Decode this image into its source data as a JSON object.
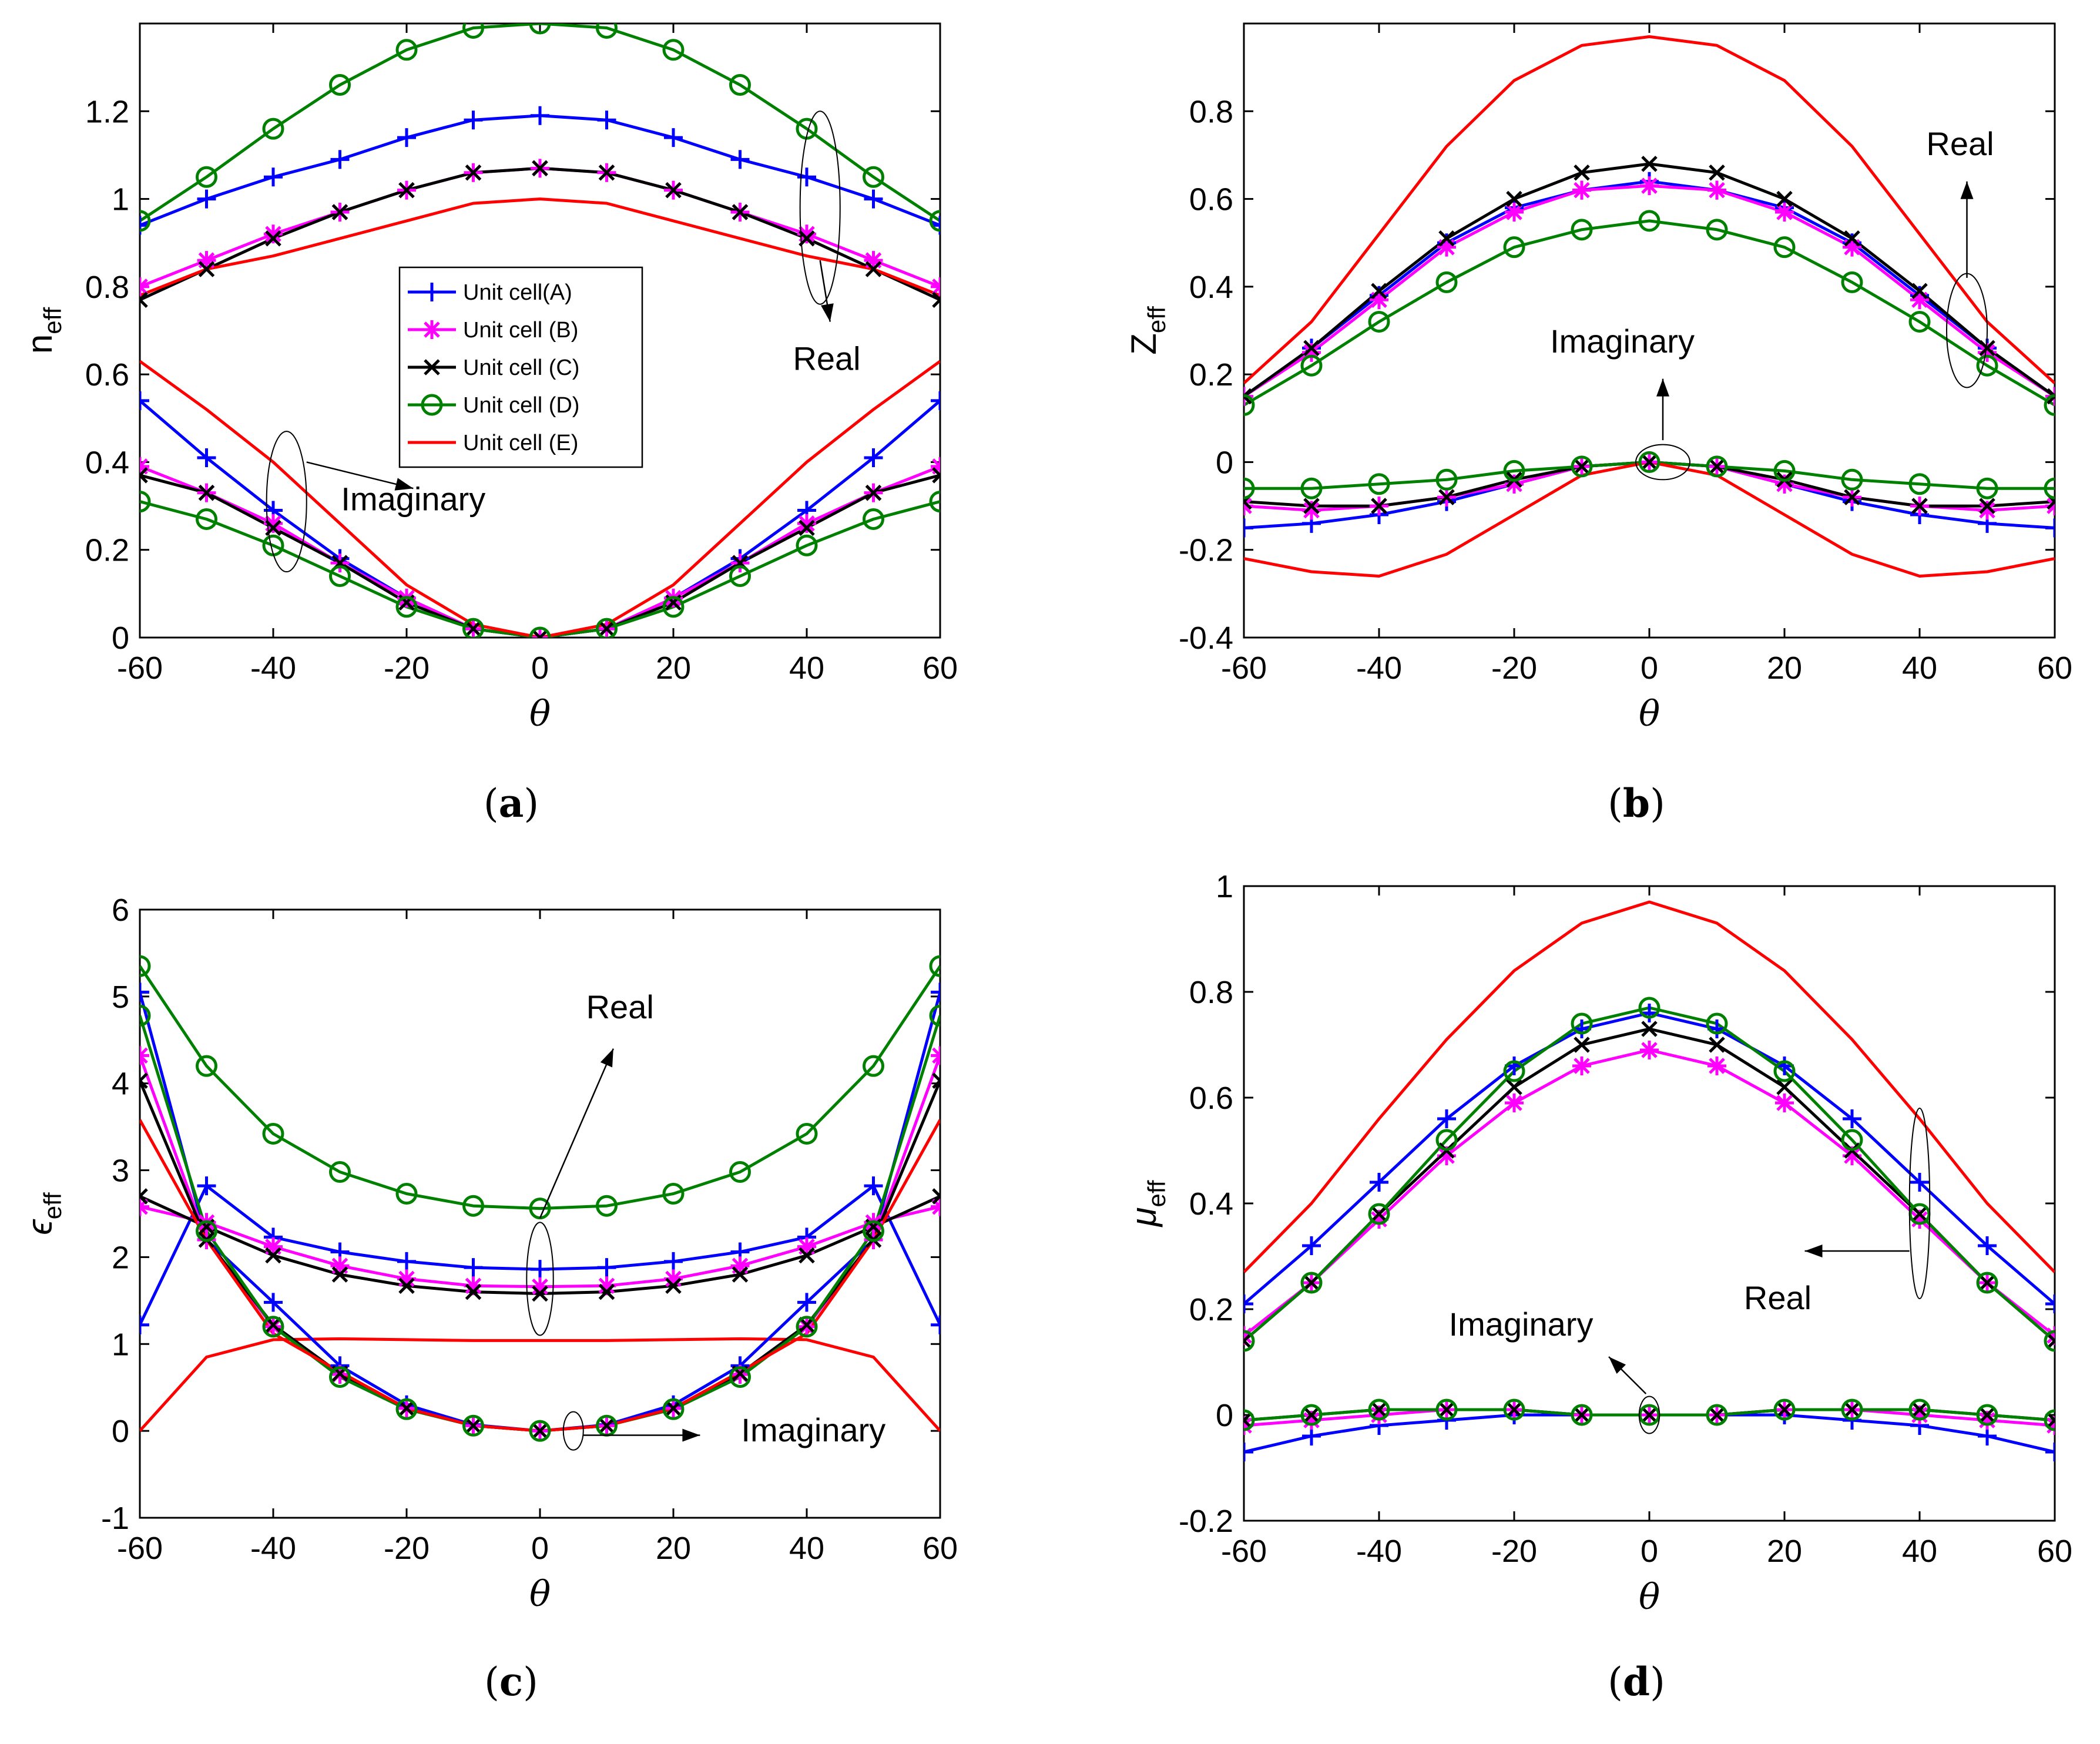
{
  "colors": {
    "A": "#0000ff",
    "B": "#ff00ff",
    "C": "#000000",
    "D": "#008000",
    "E": "#ff0000"
  },
  "chart_data": [
    {
      "id": "a",
      "type": "line",
      "panel_label": "a",
      "ylabel": "n",
      "ylabel_sub": "eff",
      "xlabel": "θ",
      "xlim": [
        -60,
        60
      ],
      "ylim": [
        0,
        1.4
      ],
      "xticks": [
        -60,
        -40,
        -20,
        0,
        20,
        40,
        60
      ],
      "xtick_labels": [
        "-60",
        "-40",
        "-20",
        "0",
        "20",
        "40",
        "60"
      ],
      "yticks": [
        0,
        0.2,
        0.4,
        0.6,
        0.8,
        1,
        1.2
      ],
      "ytick_labels": [
        "0",
        "0.2",
        "0.4",
        "0.6",
        "0.8",
        "1",
        "1.2"
      ],
      "x": [
        -60,
        -50,
        -40,
        -30,
        -20,
        -10,
        0,
        10,
        20,
        30,
        40,
        50,
        60
      ],
      "legend": {
        "position": "center",
        "entries": [
          {
            "key": "A",
            "label": "Unit cell(A)"
          },
          {
            "key": "B",
            "label": "Unit cell (B)"
          },
          {
            "key": "C",
            "label": "Unit cell (C)"
          },
          {
            "key": "D",
            "label": "Unit cell (D)"
          },
          {
            "key": "E",
            "label": "Unit cell (E)"
          }
        ]
      },
      "annotations": [
        {
          "text": "Real",
          "tx": 43,
          "ty": 0.61,
          "ex": 42,
          "ey": 0.98,
          "erx": 3,
          "ery": 0.22,
          "ax1": 42,
          "ay1": 0.86,
          "ax2": 43.5,
          "ay2": 0.72
        },
        {
          "text": "Imaginary",
          "tx": -19,
          "ty": 0.29,
          "ex": -38,
          "ey": 0.31,
          "erx": 3,
          "ery": 0.16,
          "ax1": -35,
          "ay1": 0.4,
          "ax2": -19,
          "ay2": 0.34
        }
      ],
      "series": [
        {
          "key": "A",
          "marker": "plus",
          "values": [
            0.94,
            1.0,
            1.05,
            1.09,
            1.14,
            1.18,
            1.19,
            1.18,
            1.14,
            1.09,
            1.05,
            1.0,
            0.94
          ]
        },
        {
          "key": "B",
          "marker": "star",
          "values": [
            0.8,
            0.86,
            0.92,
            0.97,
            1.02,
            1.06,
            1.07,
            1.06,
            1.02,
            0.97,
            0.92,
            0.86,
            0.8
          ]
        },
        {
          "key": "C",
          "marker": "x",
          "values": [
            0.77,
            0.84,
            0.91,
            0.97,
            1.02,
            1.06,
            1.07,
            1.06,
            1.02,
            0.97,
            0.91,
            0.84,
            0.77
          ]
        },
        {
          "key": "D",
          "marker": "circle",
          "values": [
            0.95,
            1.05,
            1.16,
            1.26,
            1.34,
            1.39,
            1.4,
            1.39,
            1.34,
            1.26,
            1.16,
            1.05,
            0.95
          ]
        },
        {
          "key": "E",
          "marker": "none",
          "values": [
            0.78,
            0.84,
            0.87,
            0.91,
            0.95,
            0.99,
            1.0,
            0.99,
            0.95,
            0.91,
            0.87,
            0.84,
            0.78
          ]
        },
        {
          "key": "A",
          "marker": "plus",
          "values": [
            0.54,
            0.41,
            0.29,
            0.18,
            0.09,
            0.02,
            0.0,
            0.02,
            0.09,
            0.18,
            0.29,
            0.41,
            0.54
          ]
        },
        {
          "key": "B",
          "marker": "star",
          "values": [
            0.39,
            0.33,
            0.26,
            0.17,
            0.09,
            0.02,
            0.0,
            0.02,
            0.09,
            0.17,
            0.26,
            0.33,
            0.39
          ]
        },
        {
          "key": "C",
          "marker": "x",
          "values": [
            0.37,
            0.33,
            0.25,
            0.17,
            0.08,
            0.02,
            0.0,
            0.02,
            0.08,
            0.17,
            0.25,
            0.33,
            0.37
          ]
        },
        {
          "key": "D",
          "marker": "circle",
          "values": [
            0.31,
            0.27,
            0.21,
            0.14,
            0.07,
            0.02,
            0.0,
            0.02,
            0.07,
            0.14,
            0.21,
            0.27,
            0.31
          ]
        },
        {
          "key": "E",
          "marker": "none",
          "values": [
            0.63,
            0.52,
            0.4,
            0.26,
            0.12,
            0.03,
            0.0,
            0.03,
            0.12,
            0.26,
            0.4,
            0.52,
            0.63
          ]
        }
      ]
    },
    {
      "id": "b",
      "type": "line",
      "panel_label": "b",
      "ylabel": "Z",
      "ylabel_sub": "eff",
      "xlabel": "θ",
      "xlim": [
        -60,
        60
      ],
      "ylim": [
        -0.4,
        1.0
      ],
      "xticks": [
        -60,
        -40,
        -20,
        0,
        20,
        40,
        60
      ],
      "xtick_labels": [
        "-60",
        "-40",
        "-20",
        "0",
        "20",
        "40",
        "60"
      ],
      "yticks": [
        -0.4,
        -0.2,
        0,
        0.2,
        0.4,
        0.6,
        0.8
      ],
      "ytick_labels": [
        "-0.4",
        "-0.2",
        "0",
        "0.2",
        "0.4",
        "0.6",
        "0.8"
      ],
      "x": [
        -60,
        -50,
        -40,
        -30,
        -20,
        -10,
        0,
        10,
        20,
        30,
        40,
        50,
        60
      ],
      "annotations": [
        {
          "text": "Real",
          "tx": 46,
          "ty": 0.7,
          "ex": 47,
          "ey": 0.3,
          "erx": 3,
          "ery": 0.13,
          "ax1": 47,
          "ay1": 0.42,
          "ax2": 47,
          "ay2": 0.64
        },
        {
          "text": "Imaginary",
          "tx": -4,
          "ty": 0.25,
          "ex": 2,
          "ey": 0.0,
          "erx": 4,
          "ery": 0.04,
          "ax1": 2,
          "ay1": 0.05,
          "ax2": 2,
          "ay2": 0.19
        }
      ],
      "series": [
        {
          "key": "A",
          "marker": "plus",
          "values": [
            0.15,
            0.26,
            0.38,
            0.5,
            0.58,
            0.62,
            0.64,
            0.62,
            0.58,
            0.5,
            0.38,
            0.26,
            0.15
          ]
        },
        {
          "key": "B",
          "marker": "star",
          "values": [
            0.15,
            0.25,
            0.37,
            0.49,
            0.57,
            0.62,
            0.63,
            0.62,
            0.57,
            0.49,
            0.37,
            0.25,
            0.15
          ]
        },
        {
          "key": "C",
          "marker": "x",
          "values": [
            0.15,
            0.26,
            0.39,
            0.51,
            0.6,
            0.66,
            0.68,
            0.66,
            0.6,
            0.51,
            0.39,
            0.26,
            0.15
          ]
        },
        {
          "key": "D",
          "marker": "circle",
          "values": [
            0.13,
            0.22,
            0.32,
            0.41,
            0.49,
            0.53,
            0.55,
            0.53,
            0.49,
            0.41,
            0.32,
            0.22,
            0.13
          ]
        },
        {
          "key": "E",
          "marker": "none",
          "values": [
            0.18,
            0.32,
            0.52,
            0.72,
            0.87,
            0.95,
            0.97,
            0.95,
            0.87,
            0.72,
            0.52,
            0.32,
            0.18
          ]
        },
        {
          "key": "A",
          "marker": "plus",
          "values": [
            -0.15,
            -0.14,
            -0.12,
            -0.09,
            -0.05,
            -0.01,
            0.0,
            -0.01,
            -0.05,
            -0.09,
            -0.12,
            -0.14,
            -0.15
          ]
        },
        {
          "key": "B",
          "marker": "star",
          "values": [
            -0.1,
            -0.11,
            -0.1,
            -0.08,
            -0.05,
            -0.01,
            0.0,
            -0.01,
            -0.05,
            -0.08,
            -0.1,
            -0.11,
            -0.1
          ]
        },
        {
          "key": "C",
          "marker": "x",
          "values": [
            -0.09,
            -0.1,
            -0.1,
            -0.08,
            -0.04,
            -0.01,
            0.0,
            -0.01,
            -0.04,
            -0.08,
            -0.1,
            -0.1,
            -0.09
          ]
        },
        {
          "key": "D",
          "marker": "circle",
          "values": [
            -0.06,
            -0.06,
            -0.05,
            -0.04,
            -0.02,
            -0.01,
            0.0,
            -0.01,
            -0.02,
            -0.04,
            -0.05,
            -0.06,
            -0.06
          ]
        },
        {
          "key": "E",
          "marker": "none",
          "values": [
            -0.22,
            -0.25,
            -0.26,
            -0.21,
            -0.12,
            -0.03,
            0.0,
            -0.03,
            -0.12,
            -0.21,
            -0.26,
            -0.25,
            -0.22
          ]
        }
      ]
    },
    {
      "id": "c",
      "type": "line",
      "panel_label": "c",
      "ylabel": "ϵ",
      "ylabel_sub": "eff",
      "xlabel": "θ",
      "xlim": [
        -60,
        60
      ],
      "ylim": [
        -1,
        6
      ],
      "xticks": [
        -60,
        -40,
        -20,
        0,
        20,
        40,
        60
      ],
      "xtick_labels": [
        "-60",
        "-40",
        "-20",
        "0",
        "20",
        "40",
        "60"
      ],
      "yticks": [
        -1,
        0,
        1,
        2,
        3,
        4,
        5,
        6
      ],
      "ytick_labels": [
        "-1",
        "0",
        "1",
        "2",
        "3",
        "4",
        "5",
        "6"
      ],
      "x": [
        -60,
        -50,
        -40,
        -30,
        -20,
        -10,
        0,
        10,
        20,
        30,
        40,
        50,
        60
      ],
      "annotations": [
        {
          "text": "Real",
          "tx": 12,
          "ty": 4.75,
          "ex": 0,
          "ey": 1.75,
          "erx": 2,
          "ery": 0.65,
          "ax1": 0,
          "ay1": 2.45,
          "ax2": 11,
          "ay2": 4.4
        },
        {
          "text": "Imaginary",
          "tx": 41,
          "ty": -0.12,
          "ex": 5,
          "ey": 0.0,
          "erx": 1.5,
          "ery": 0.22,
          "ax1": 6.5,
          "ay1": -0.05,
          "ax2": 24,
          "ay2": -0.05
        }
      ],
      "series": [
        {
          "key": "A",
          "marker": "plus",
          "values": [
            1.22,
            2.82,
            2.23,
            2.06,
            1.95,
            1.88,
            1.86,
            1.88,
            1.95,
            2.06,
            2.23,
            2.82,
            1.22
          ]
        },
        {
          "key": "B",
          "marker": "star",
          "values": [
            2.58,
            2.4,
            2.12,
            1.9,
            1.75,
            1.67,
            1.66,
            1.67,
            1.75,
            1.9,
            2.12,
            2.4,
            2.58
          ]
        },
        {
          "key": "C",
          "marker": "x",
          "values": [
            2.7,
            2.35,
            2.02,
            1.8,
            1.67,
            1.6,
            1.58,
            1.6,
            1.67,
            1.8,
            2.02,
            2.35,
            2.7
          ]
        },
        {
          "key": "D",
          "marker": "circle",
          "values": [
            5.35,
            4.2,
            3.42,
            2.98,
            2.73,
            2.59,
            2.56,
            2.59,
            2.73,
            2.98,
            3.42,
            4.2,
            5.35
          ]
        },
        {
          "key": "E",
          "marker": "none",
          "values": [
            0.0,
            0.85,
            1.05,
            1.06,
            1.05,
            1.04,
            1.04,
            1.04,
            1.05,
            1.06,
            1.05,
            0.85,
            0.0
          ]
        },
        {
          "key": "A",
          "marker": "plus",
          "values": [
            5.05,
            2.2,
            1.48,
            0.75,
            0.3,
            0.07,
            0.0,
            0.07,
            0.3,
            0.75,
            1.48,
            2.2,
            5.05
          ]
        },
        {
          "key": "B",
          "marker": "star",
          "values": [
            4.32,
            2.2,
            1.2,
            0.65,
            0.26,
            0.06,
            0.0,
            0.06,
            0.26,
            0.65,
            1.2,
            2.2,
            4.32
          ]
        },
        {
          "key": "C",
          "marker": "x",
          "values": [
            4.03,
            2.2,
            1.22,
            0.66,
            0.26,
            0.06,
            0.0,
            0.06,
            0.26,
            0.66,
            1.22,
            2.2,
            4.03
          ]
        },
        {
          "key": "D",
          "marker": "circle",
          "values": [
            4.78,
            2.3,
            1.2,
            0.62,
            0.25,
            0.06,
            0.0,
            0.06,
            0.25,
            0.62,
            1.2,
            2.3,
            4.78
          ]
        },
        {
          "key": "E",
          "marker": "none",
          "values": [
            3.58,
            2.2,
            1.12,
            0.68,
            0.26,
            0.06,
            0.0,
            0.06,
            0.26,
            0.68,
            1.12,
            2.2,
            3.58
          ]
        }
      ]
    },
    {
      "id": "d",
      "type": "line",
      "panel_label": "d",
      "ylabel": "μ",
      "ylabel_sub": "eff",
      "xlabel": "θ",
      "xlim": [
        -60,
        60
      ],
      "ylim": [
        -0.2,
        1.0
      ],
      "xticks": [
        -60,
        -40,
        -20,
        0,
        20,
        40,
        60
      ],
      "xtick_labels": [
        "-60",
        "-40",
        "-20",
        "0",
        "20",
        "40",
        "60"
      ],
      "yticks": [
        -0.2,
        0,
        0.2,
        0.4,
        0.6,
        0.8,
        1
      ],
      "ytick_labels": [
        "-0.2",
        "0",
        "0.2",
        "0.4",
        "0.6",
        "0.8",
        "1"
      ],
      "x": [
        -60,
        -50,
        -40,
        -30,
        -20,
        -10,
        0,
        10,
        20,
        30,
        40,
        50,
        60
      ],
      "annotations": [
        {
          "text": "Real",
          "tx": 19,
          "ty": 0.2,
          "ex": 40,
          "ey": 0.4,
          "erx": 1.5,
          "ery": 0.18,
          "ax1": 38.5,
          "ay1": 0.31,
          "ax2": 23,
          "ay2": 0.31
        },
        {
          "text": "Imaginary",
          "tx": -19,
          "ty": 0.15,
          "ex": 0,
          "ey": 0.0,
          "erx": 1.5,
          "ery": 0.035,
          "ax1": -0.5,
          "ay1": 0.04,
          "ax2": -6,
          "ay2": 0.11
        }
      ],
      "series": [
        {
          "key": "A",
          "marker": "plus",
          "values": [
            0.21,
            0.32,
            0.44,
            0.56,
            0.66,
            0.73,
            0.76,
            0.73,
            0.66,
            0.56,
            0.44,
            0.32,
            0.21
          ]
        },
        {
          "key": "B",
          "marker": "star",
          "values": [
            0.15,
            0.25,
            0.37,
            0.49,
            0.59,
            0.66,
            0.69,
            0.66,
            0.59,
            0.49,
            0.37,
            0.25,
            0.15
          ]
        },
        {
          "key": "C",
          "marker": "x",
          "values": [
            0.14,
            0.25,
            0.38,
            0.5,
            0.62,
            0.7,
            0.73,
            0.7,
            0.62,
            0.5,
            0.38,
            0.25,
            0.14
          ]
        },
        {
          "key": "D",
          "marker": "circle",
          "values": [
            0.14,
            0.25,
            0.38,
            0.52,
            0.65,
            0.74,
            0.77,
            0.74,
            0.65,
            0.52,
            0.38,
            0.25,
            0.14
          ]
        },
        {
          "key": "E",
          "marker": "none",
          "values": [
            0.27,
            0.4,
            0.56,
            0.71,
            0.84,
            0.93,
            0.97,
            0.93,
            0.84,
            0.71,
            0.56,
            0.4,
            0.27
          ]
        },
        {
          "key": "A",
          "marker": "plus",
          "values": [
            -0.07,
            -0.04,
            -0.02,
            -0.01,
            0.0,
            0.0,
            0.0,
            0.0,
            0.0,
            -0.01,
            -0.02,
            -0.04,
            -0.07
          ]
        },
        {
          "key": "B",
          "marker": "star",
          "values": [
            -0.02,
            -0.01,
            0.0,
            0.01,
            0.01,
            0.0,
            0.0,
            0.0,
            0.01,
            0.01,
            0.0,
            -0.01,
            -0.02
          ]
        },
        {
          "key": "C",
          "marker": "x",
          "values": [
            -0.01,
            0.0,
            0.01,
            0.01,
            0.01,
            0.0,
            0.0,
            0.0,
            0.01,
            0.01,
            0.01,
            0.0,
            -0.01
          ]
        },
        {
          "key": "D",
          "marker": "circle",
          "values": [
            -0.01,
            0.0,
            0.01,
            0.01,
            0.01,
            0.0,
            0.0,
            0.0,
            0.01,
            0.01,
            0.01,
            0.0,
            -0.01
          ]
        }
      ]
    }
  ]
}
